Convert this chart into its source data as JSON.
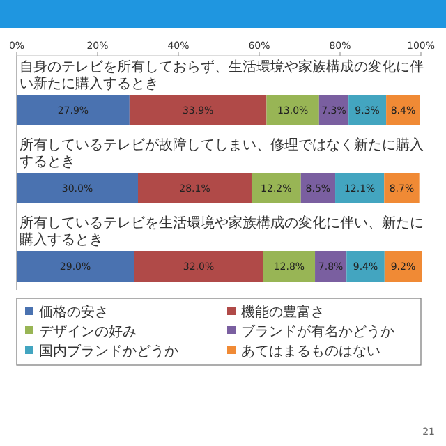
{
  "chart_data": {
    "type": "bar",
    "orientation": "horizontal",
    "stacked": true,
    "categories": [
      "自身のテレビを所有しておらず、生活環境や家族構成の変化に伴い新たに購入するとき",
      "所有しているテレビが故障してしまい、修理ではなく新たに購入するとき",
      "所有しているテレビを生活環境や家族構成の変化に伴い、新たに購入するとき"
    ],
    "series": [
      {
        "name": "価格の安さ",
        "color": "#4a72b0",
        "values": [
          27.9,
          30.0,
          29.0
        ],
        "value_labels": [
          "27.9%",
          "30.0%",
          "29.0%"
        ]
      },
      {
        "name": "機能の豊富さ",
        "color": "#b04a48",
        "values": [
          33.9,
          28.1,
          32.0
        ],
        "value_labels": [
          "33.9%",
          "28.1%",
          "32.0%"
        ]
      },
      {
        "name": "デザインの好み",
        "color": "#98b555",
        "values": [
          13.0,
          12.2,
          12.8
        ],
        "value_labels": [
          "13.0%",
          "12.2%",
          "12.8%"
        ]
      },
      {
        "name": "ブランドが有名かどうか",
        "color": "#7a5fa0",
        "values": [
          7.3,
          8.5,
          7.8
        ],
        "value_labels": [
          "7.3%",
          "8.5%",
          "7.8%"
        ]
      },
      {
        "name": "国内ブランドかどうか",
        "color": "#43a5c0",
        "values": [
          9.3,
          12.1,
          9.4
        ],
        "value_labels": [
          "9.3%",
          "12.1%",
          "9.4%"
        ]
      },
      {
        "name": "あてはまるものはない",
        "color": "#f08a35",
        "values": [
          8.4,
          8.7,
          9.2
        ],
        "value_labels": [
          "8.4%",
          "8.7%",
          "9.2%"
        ]
      }
    ],
    "xlim": [
      0,
      100
    ],
    "xticks": [
      {
        "value": 0,
        "label": "0%"
      },
      {
        "value": 20,
        "label": "20%"
      },
      {
        "value": 40,
        "label": "40%"
      },
      {
        "value": 60,
        "label": "60%"
      },
      {
        "value": 80,
        "label": "80%"
      },
      {
        "value": 100,
        "label": "100%"
      }
    ],
    "grid": false,
    "legend": "bottom",
    "annotations": [
      "21"
    ]
  }
}
